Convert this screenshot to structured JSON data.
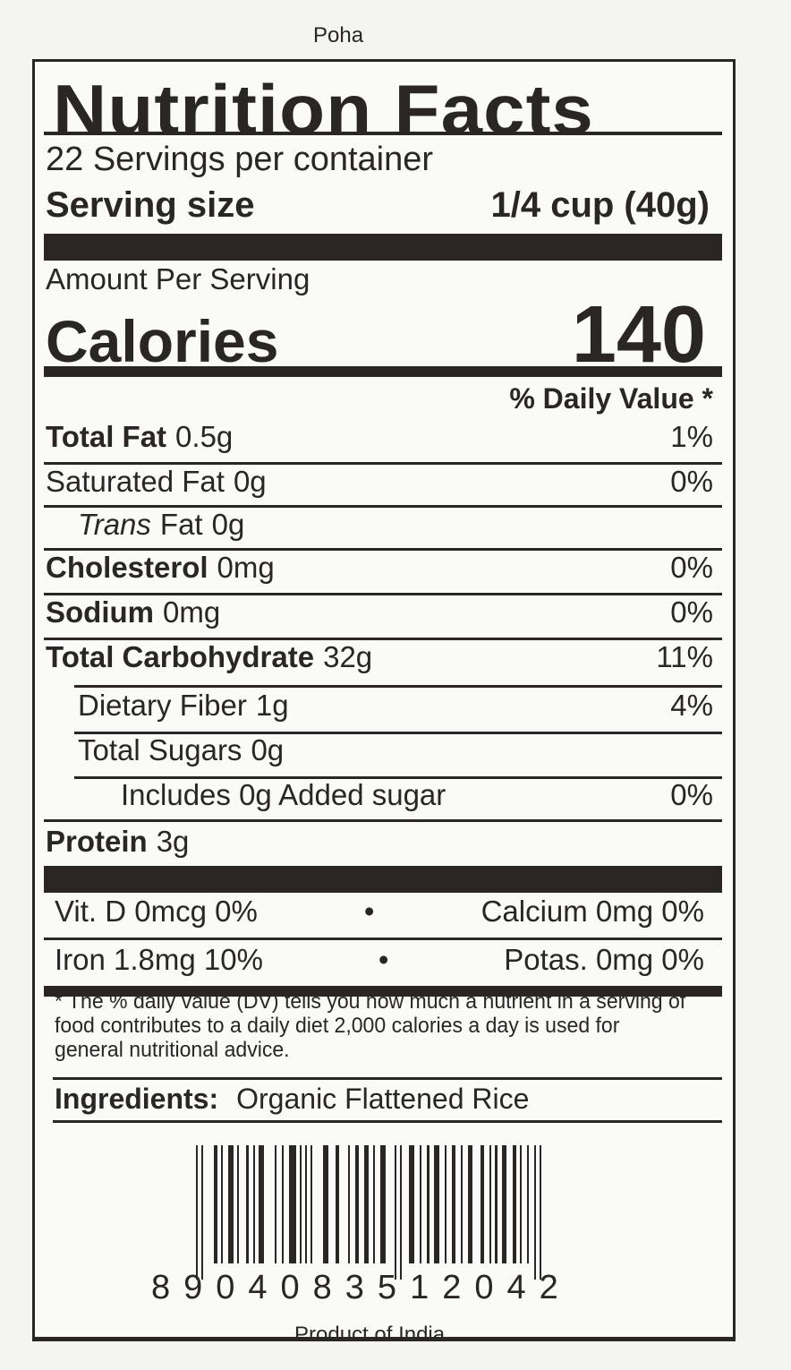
{
  "product_name": "Poha",
  "label": {
    "title": "Nutrition Facts",
    "servings_per_container": "22 Servings per container",
    "serving_size_label": "Serving size",
    "serving_size_value": "1/4 cup (40g)",
    "amount_per_serving": "Amount Per Serving",
    "calories_label": "Calories",
    "calories_value": "140",
    "daily_value_header": "% Daily Value *",
    "nutrients": [
      {
        "name": "Total Fat",
        "amount": "0.5g",
        "dv": "1%"
      },
      {
        "name": "Saturated Fat",
        "amount": "0g",
        "dv": "0%"
      },
      {
        "name": "Trans",
        "name_suffix": "Fat",
        "amount": "0g",
        "dv": ""
      },
      {
        "name": "Cholesterol",
        "amount": "0mg",
        "dv": "0%"
      },
      {
        "name": "Sodium",
        "amount": "0mg",
        "dv": "0%"
      },
      {
        "name": "Total Carbohydrate",
        "amount": "32g",
        "dv": "11%"
      },
      {
        "name": "Dietary Fiber",
        "amount": "1g",
        "dv": "4%"
      },
      {
        "name": "Total Sugars",
        "amount": "0g",
        "dv": ""
      },
      {
        "name": "Includes 0g Added sugar",
        "amount": "",
        "dv": "0%"
      },
      {
        "name": "Protein",
        "amount": "3g",
        "dv": ""
      }
    ],
    "vitamins": [
      {
        "left": "Vit. D 0mcg  0%",
        "right": "Calcium 0mg 0%"
      },
      {
        "left": "Iron 1.8mg  10%",
        "right": "Potas. 0mg 0%"
      }
    ],
    "bullet": "•",
    "footnote": "* The % daily value (DV) tells you how much a nutrient in a serving of food contributes to a daily diet 2,000 calories a day is used for general nutritional advice.",
    "ingredients_label": "Ingredients:",
    "ingredients_value": "Organic Flattened Rice"
  },
  "barcode": {
    "digits": "8904083512042"
  },
  "origin": "Product of India"
}
